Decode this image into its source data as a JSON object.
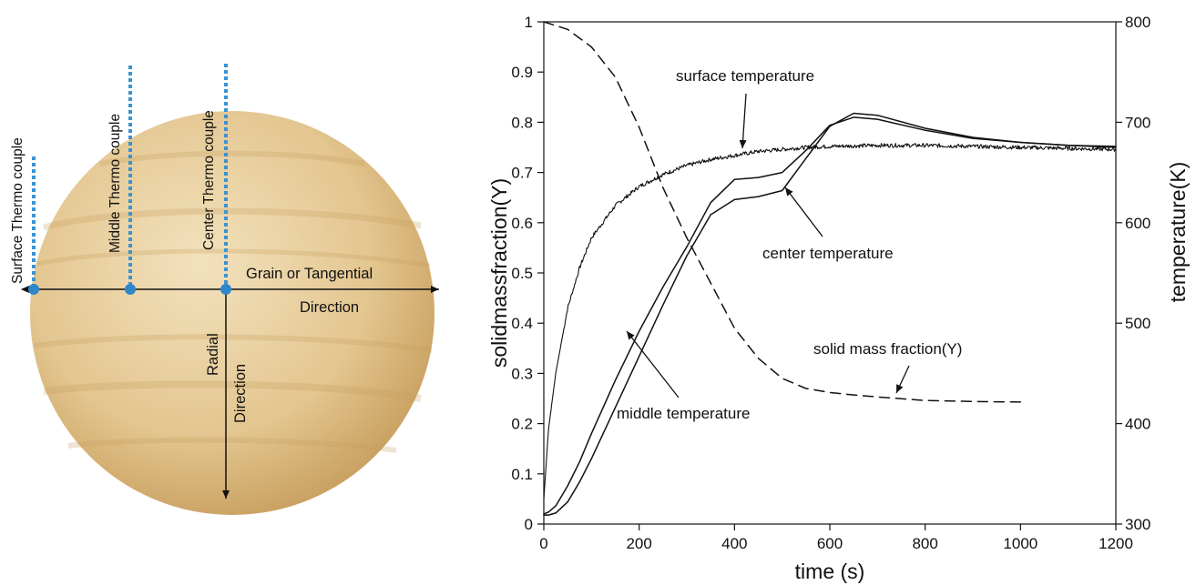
{
  "sphere": {
    "thermocouples": [
      "Surface Thermo couple",
      "Middle Thermo couple",
      "Center Thermo couple"
    ],
    "grain_label": "Grain or Tangential",
    "grain_label2": "Direction",
    "radial_label": "Radial",
    "radial_label2": "Direction",
    "colors": {
      "wood": "#e6cc9a",
      "wood_dark": "#c99f62",
      "probe": "#3a93d4"
    }
  },
  "chart_data": {
    "type": "line",
    "xlabel": "time (s)",
    "ylabel": "solidmassfraction(Y)",
    "y2label": "temperature(K)",
    "xlim": [
      0,
      1200
    ],
    "ylim": [
      0,
      1
    ],
    "y2lim": [
      300,
      800
    ],
    "xticks": [
      0,
      200,
      400,
      600,
      800,
      1000,
      1200
    ],
    "xtick_labels": [
      "0",
      "200",
      "400",
      "600",
      "800",
      "1000",
      "1200"
    ],
    "yticks": [
      0,
      0.1,
      0.2,
      0.3,
      0.4,
      0.5,
      0.6,
      0.7,
      0.8,
      0.9,
      1
    ],
    "ytick_labels": [
      "0",
      "0.1",
      "0.2",
      "0.3",
      "0.4",
      "0.5",
      "0.6",
      "0.7",
      "0.8",
      "0.9",
      "1"
    ],
    "y2ticks": [
      300,
      400,
      500,
      600,
      700,
      800
    ],
    "y2tick_labels": [
      "300",
      "400",
      "500",
      "600",
      "700",
      "800"
    ],
    "grid": false,
    "series": [
      {
        "name": "surface temperature",
        "axis": "right",
        "style": "solid",
        "noisy": true,
        "x": [
          0,
          10,
          25,
          50,
          75,
          100,
          150,
          200,
          250,
          300,
          350,
          400,
          450,
          500,
          550,
          600,
          700,
          800,
          900,
          1000,
          1100,
          1200
        ],
        "y": [
          325,
          395,
          450,
          515,
          555,
          585,
          617,
          636,
          648,
          657,
          663,
          667,
          671,
          673,
          675,
          676,
          677,
          677,
          676,
          675,
          674,
          673
        ]
      },
      {
        "name": "middle temperature",
        "axis": "right",
        "style": "solid",
        "x": [
          0,
          10,
          25,
          50,
          75,
          100,
          150,
          200,
          250,
          300,
          350,
          400,
          450,
          500,
          550,
          600,
          650,
          700,
          800,
          900,
          1000,
          1100,
          1200
        ],
        "y": [
          310,
          312,
          318,
          338,
          362,
          390,
          443,
          492,
          536,
          576,
          620,
          643,
          645,
          650,
          672,
          697,
          705,
          703,
          692,
          684,
          680,
          677,
          676
        ]
      },
      {
        "name": "center temperature",
        "axis": "right",
        "style": "solid",
        "x": [
          0,
          10,
          25,
          50,
          75,
          100,
          150,
          200,
          250,
          300,
          350,
          400,
          450,
          500,
          550,
          600,
          650,
          700,
          800,
          900,
          1000,
          1100,
          1200
        ],
        "y": [
          309,
          309,
          311,
          322,
          342,
          365,
          416,
          467,
          518,
          567,
          608,
          623,
          626,
          632,
          664,
          696,
          709,
          707,
          694,
          685,
          680,
          677,
          675
        ]
      },
      {
        "name": "solid mass fraction(Y)",
        "axis": "left",
        "style": "dashed",
        "x": [
          0,
          50,
          100,
          150,
          200,
          250,
          300,
          350,
          400,
          450,
          500,
          550,
          600,
          650,
          700,
          800,
          900,
          1000
        ],
        "y": [
          1.0,
          0.985,
          0.95,
          0.89,
          0.79,
          0.67,
          0.57,
          0.48,
          0.39,
          0.33,
          0.29,
          0.27,
          0.262,
          0.257,
          0.253,
          0.246,
          0.244,
          0.243
        ]
      }
    ],
    "annotations": [
      "surface temperature",
      "center temperature",
      "solid mass fraction(Y)",
      "middle temperature"
    ]
  }
}
